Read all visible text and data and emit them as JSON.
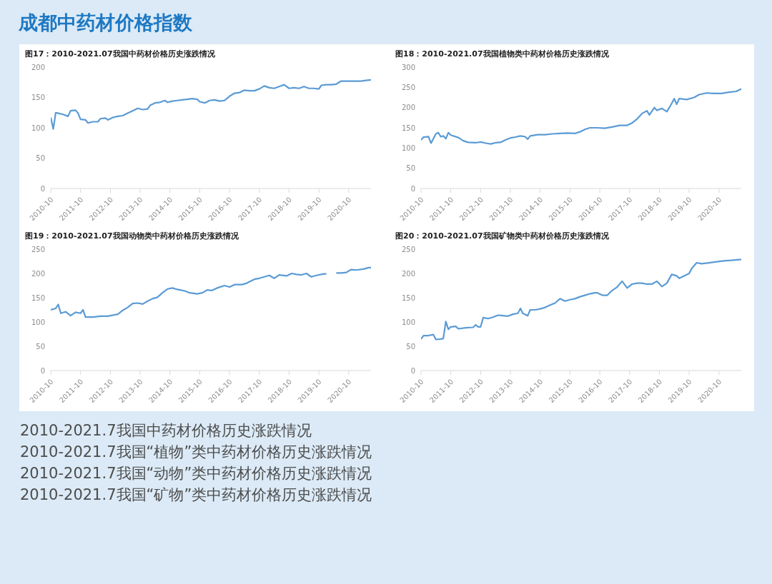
{
  "chart_data": [
    {
      "type": "other",
      "title": "成都中药材价格指数"
    },
    {
      "type": "line",
      "title": "图17：2010-2021.07我国中药材价格历史涨跌情况",
      "grid": false,
      "xlim": [
        "2010-10",
        "2021-07"
      ],
      "xticks": [
        "2010-10",
        "2011-10",
        "2012-10",
        "2013-10",
        "2014-10",
        "2015-10",
        "2016-10",
        "2017-10",
        "2018-10",
        "2019-10",
        "2020-10"
      ],
      "ylim": [
        0,
        200
      ],
      "yticks": [
        0,
        50,
        100,
        150,
        200
      ],
      "x": [
        "2010-10",
        "2010-11",
        "2010-12",
        "2011-01",
        "2011-03",
        "2011-05",
        "2011-06",
        "2011-08",
        "2011-09",
        "2011-10",
        "2011-12",
        "2012-01",
        "2012-03",
        "2012-05",
        "2012-06",
        "2012-08",
        "2012-09",
        "2012-11",
        "2013-01",
        "2013-03",
        "2013-05",
        "2013-07",
        "2013-09",
        "2013-11",
        "2014-01",
        "2014-02",
        "2014-04",
        "2014-06",
        "2014-08",
        "2014-09",
        "2014-11",
        "2015-01",
        "2015-03",
        "2015-05",
        "2015-07",
        "2015-09",
        "2015-10",
        "2015-12",
        "2016-02",
        "2016-04",
        "2016-06",
        "2016-08",
        "2016-10",
        "2016-12",
        "2017-02",
        "2017-04",
        "2017-06",
        "2017-08",
        "2017-10",
        "2017-12",
        "2018-02",
        "2018-04",
        "2018-06",
        "2018-08",
        "2018-10",
        "2018-12",
        "2019-02",
        "2019-04",
        "2019-06",
        "2019-08",
        "2019-10",
        "2019-11",
        "2020-01",
        "2020-03",
        "2020-05",
        "2020-07",
        "2020-09",
        "2020-11",
        "2021-01",
        "2021-03",
        "2021-05",
        "2021-07"
      ],
      "series": [
        {
          "color": "#5b9bd5",
          "values": [
            117,
            98,
            125,
            124,
            122,
            119,
            128,
            129,
            124,
            114,
            113,
            108,
            110,
            110,
            115,
            116,
            113,
            117,
            119,
            120,
            124,
            128,
            132,
            130,
            131,
            137,
            141,
            142,
            145,
            142,
            144,
            145,
            146,
            147,
            148,
            147,
            143,
            141,
            145,
            146,
            144,
            145,
            152,
            157,
            158,
            162,
            161,
            161,
            164,
            169,
            166,
            165,
            168,
            171,
            165,
            166,
            165,
            168,
            165,
            165,
            164,
            170,
            171,
            171,
            172,
            177,
            177,
            177,
            177,
            177,
            178,
            179
          ]
        }
      ]
    },
    {
      "type": "line",
      "title": "图18：2010-2021.07我国植物类中药材价格历史涨跌情况",
      "grid": false,
      "xlim": [
        "2010-10",
        "2021-07"
      ],
      "xticks": [
        "2010-10",
        "2011-10",
        "2012-10",
        "2013-10",
        "2014-10",
        "2015-10",
        "2016-10",
        "2017-10",
        "2018-10",
        "2019-10",
        "2020-10"
      ],
      "ylim": [
        0,
        300
      ],
      "yticks": [
        0,
        50,
        100,
        150,
        200,
        250,
        300
      ],
      "x": [
        "2010-10",
        "2010-11",
        "2011-01",
        "2011-02",
        "2011-04",
        "2011-05",
        "2011-06",
        "2011-07",
        "2011-08",
        "2011-09",
        "2011-10",
        "2012-01",
        "2012-03",
        "2012-05",
        "2012-08",
        "2012-10",
        "2012-12",
        "2013-02",
        "2013-04",
        "2013-06",
        "2013-08",
        "2013-10",
        "2013-12",
        "2014-02",
        "2014-04",
        "2014-05",
        "2014-06",
        "2014-09",
        "2014-12",
        "2015-03",
        "2015-06",
        "2015-09",
        "2015-12",
        "2016-02",
        "2016-04",
        "2016-06",
        "2016-09",
        "2016-12",
        "2017-03",
        "2017-06",
        "2017-09",
        "2017-11",
        "2018-01",
        "2018-03",
        "2018-05",
        "2018-06",
        "2018-08",
        "2018-09",
        "2018-11",
        "2019-01",
        "2019-03",
        "2019-04",
        "2019-05",
        "2019-06",
        "2019-09",
        "2019-12",
        "2020-02",
        "2020-05",
        "2020-08",
        "2020-11",
        "2021-02",
        "2021-05",
        "2021-07"
      ],
      "series": [
        {
          "color": "#5b9bd5",
          "values": [
            120,
            127,
            128,
            112,
            135,
            138,
            128,
            130,
            123,
            138,
            132,
            126,
            118,
            114,
            113,
            115,
            112,
            110,
            113,
            114,
            120,
            125,
            127,
            130,
            128,
            122,
            130,
            133,
            133,
            135,
            136,
            137,
            136,
            140,
            146,
            150,
            150,
            149,
            152,
            156,
            156,
            162,
            172,
            185,
            192,
            182,
            200,
            193,
            198,
            190,
            210,
            222,
            208,
            222,
            220,
            225,
            232,
            236,
            235,
            235,
            238,
            240,
            246
          ]
        }
      ]
    },
    {
      "type": "line",
      "title": "图19：2010-2021.07我国动物类中药材价格历史涨跌情况",
      "grid": false,
      "xlim": [
        "2010-10",
        "2021-07"
      ],
      "xticks": [
        "2010-10",
        "2011-10",
        "2012-10",
        "2013-10",
        "2014-10",
        "2015-10",
        "2016-10",
        "2017-10",
        "2018-10",
        "2019-10",
        "2020-10"
      ],
      "ylim": [
        0,
        250
      ],
      "yticks": [
        0,
        50,
        100,
        150,
        200,
        250
      ],
      "x": [
        "2010-10",
        "2010-12",
        "2011-01",
        "2011-02",
        "2011-04",
        "2011-06",
        "2011-08",
        "2011-10",
        "2011-11",
        "2011-12",
        "2012-03",
        "2012-06",
        "2012-09",
        "2012-10",
        "2013-01",
        "2013-03",
        "2013-05",
        "2013-07",
        "2013-09",
        "2013-11",
        "2014-01",
        "2014-03",
        "2014-05",
        "2014-07",
        "2014-09",
        "2014-11",
        "2015-01",
        "2015-04",
        "2015-06",
        "2015-09",
        "2015-11",
        "2016-01",
        "2016-03",
        "2016-05",
        "2016-08",
        "2016-10",
        "2016-12",
        "2017-03",
        "2017-05",
        "2017-08",
        "2017-10",
        "2017-12",
        "2018-02",
        "2018-04",
        "2018-06",
        "2018-09",
        "2018-11",
        "2019-01",
        "2019-03",
        "2019-05",
        "2019-07",
        "2019-09",
        "2019-12",
        "2020-01",
        "2020-03",
        "2020-05",
        "2020-07",
        "2020-09",
        "2020-11",
        "2021-01",
        "2021-04",
        "2021-06",
        "2021-07"
      ],
      "series": [
        {
          "color": "#5b9bd5",
          "values": [
            125,
            128,
            136,
            118,
            121,
            113,
            120,
            118,
            125,
            110,
            110,
            112,
            112,
            113,
            116,
            124,
            130,
            138,
            139,
            137,
            143,
            148,
            151,
            160,
            168,
            170,
            167,
            164,
            160,
            158,
            160,
            166,
            165,
            170,
            175,
            172,
            177,
            177,
            180,
            188,
            190,
            193,
            196,
            190,
            197,
            195,
            200,
            198,
            197,
            200,
            193,
            196,
            199,
            199,
            null,
            201,
            201,
            202,
            208,
            207,
            209,
            212,
            212
          ]
        }
      ]
    },
    {
      "type": "line",
      "title": "图20：2010-2021.07我国矿物类中药材价格历史涨跌情况",
      "grid": false,
      "xlim": [
        "2010-10",
        "2021-07"
      ],
      "xticks": [
        "2010-10",
        "2011-10",
        "2012-10",
        "2013-10",
        "2014-10",
        "2015-10",
        "2016-10",
        "2017-10",
        "2018-10",
        "2019-10",
        "2020-10"
      ],
      "ylim": [
        0,
        250
      ],
      "yticks": [
        0,
        50,
        100,
        150,
        200,
        250
      ],
      "x": [
        "2010-10",
        "2010-11",
        "2011-01",
        "2011-03",
        "2011-04",
        "2011-06",
        "2011-07",
        "2011-08",
        "2011-09",
        "2011-10",
        "2011-12",
        "2012-01",
        "2012-04",
        "2012-07",
        "2012-08",
        "2012-09",
        "2012-10",
        "2012-11",
        "2013-01",
        "2013-03",
        "2013-05",
        "2013-07",
        "2013-09",
        "2013-11",
        "2014-01",
        "2014-02",
        "2014-03",
        "2014-05",
        "2014-06",
        "2014-08",
        "2014-10",
        "2014-12",
        "2015-02",
        "2015-04",
        "2015-06",
        "2015-08",
        "2015-10",
        "2015-12",
        "2016-02",
        "2016-04",
        "2016-06",
        "2016-08",
        "2016-09",
        "2016-11",
        "2017-01",
        "2017-03",
        "2017-05",
        "2017-07",
        "2017-09",
        "2017-11",
        "2018-01",
        "2018-03",
        "2018-05",
        "2018-07",
        "2018-09",
        "2018-11",
        "2019-01",
        "2019-03",
        "2019-05",
        "2019-06",
        "2019-08",
        "2019-10",
        "2019-11",
        "2020-01",
        "2020-03",
        "2020-06",
        "2020-09",
        "2020-12",
        "2021-03",
        "2021-07"
      ],
      "series": [
        {
          "color": "#5b9bd5",
          "values": [
            65,
            72,
            72,
            74,
            64,
            65,
            66,
            101,
            85,
            90,
            91,
            86,
            88,
            89,
            94,
            90,
            90,
            109,
            107,
            110,
            114,
            113,
            112,
            116,
            118,
            128,
            118,
            113,
            125,
            125,
            127,
            130,
            135,
            139,
            148,
            143,
            146,
            148,
            152,
            155,
            158,
            160,
            160,
            155,
            155,
            165,
            172,
            184,
            170,
            178,
            180,
            180,
            178,
            178,
            184,
            173,
            180,
            198,
            195,
            190,
            195,
            200,
            210,
            222,
            220,
            222,
            224,
            226,
            227,
            229
          ]
        }
      ]
    },
    {
      "type": "other",
      "annotations": [
        "2010-2021.7我国中药材价格历史涨跌情况",
        "2010-2021.7我国“植物”类中药材价格历史涨跌情况",
        "2010-2021.7我国“动物”类中药材价格历史涨跌情况",
        "2010-2021.7我国“矿物”类中药材价格历史涨跌情况"
      ]
    }
  ]
}
